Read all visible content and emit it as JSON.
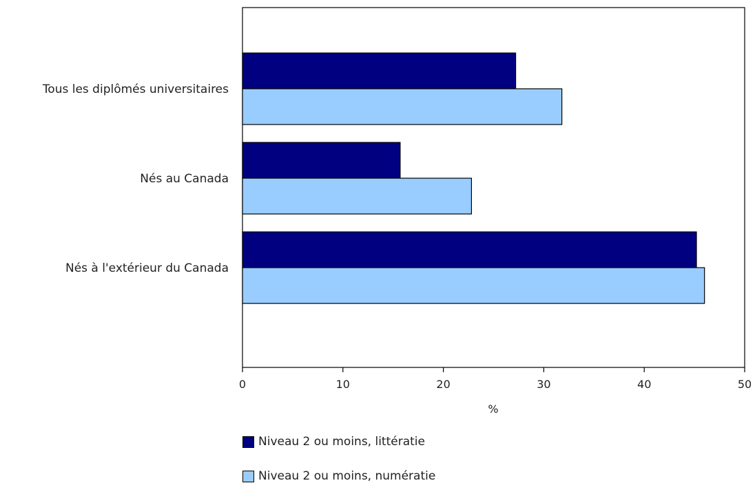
{
  "chart_data": {
    "type": "bar",
    "orientation": "horizontal",
    "categories": [
      "Tous les diplômés universitaires",
      "Nés au Canada",
      "Nés à l'extérieur du Canada"
    ],
    "series": [
      {
        "name": "Niveau 2 ou moins, littératie",
        "values": [
          27.2,
          15.7,
          45.2
        ],
        "color": "#000080"
      },
      {
        "name": "Niveau 2 ou moins, numératie",
        "values": [
          31.8,
          22.8,
          46.0
        ],
        "color": "#99ccff"
      }
    ],
    "xlabel": "%",
    "xlim": [
      0,
      50
    ],
    "xticks": [
      "0",
      "10",
      "20",
      "30",
      "40",
      "50"
    ],
    "grid": false,
    "legend_position": "bottom-left"
  }
}
